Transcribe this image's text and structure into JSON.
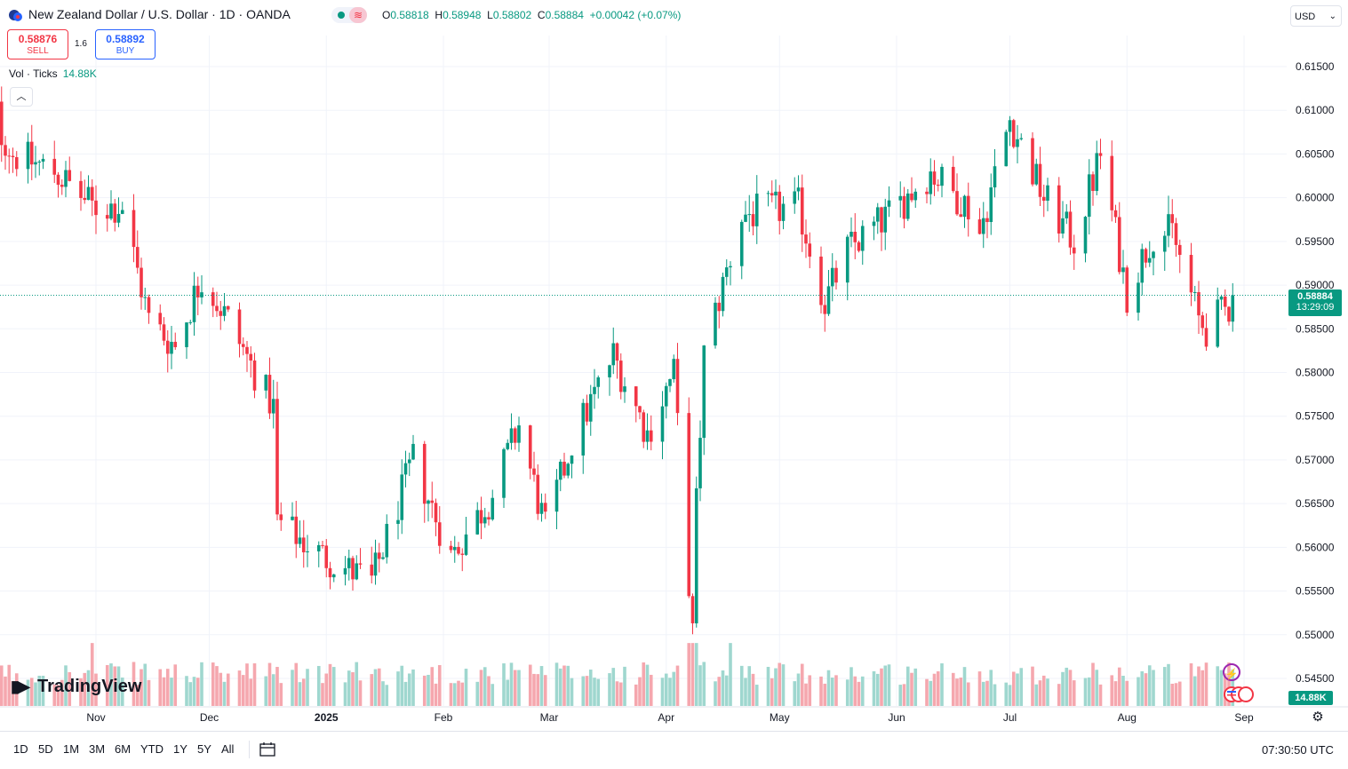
{
  "header": {
    "title": "New Zealand Dollar / U.S. Dollar · 1D · OANDA",
    "ohlc": {
      "open_label": "O",
      "open": "0.58818",
      "high_label": "H",
      "high": "0.58948",
      "low_label": "L",
      "low": "0.58802",
      "close_label": "C",
      "close": "0.58884",
      "change": "+0.00042 (+0.07%)"
    },
    "currency": "USD"
  },
  "trade": {
    "sell_price": "0.58876",
    "sell_label": "SELL",
    "spread": "1.6",
    "buy_price": "0.58892",
    "buy_label": "BUY"
  },
  "volume_legend": {
    "label": "Vol · Ticks",
    "value": "14.88K"
  },
  "price_tag": {
    "price": "0.58884",
    "countdown": "13:29:09"
  },
  "volume_tag": "14.88K",
  "logo": "TradingView",
  "bottom": {
    "ranges": [
      "1D",
      "5D",
      "1M",
      "3M",
      "6M",
      "YTD",
      "1Y",
      "5Y",
      "All"
    ],
    "clock": "07:30:50 UTC"
  },
  "colors": {
    "up": "#089981",
    "down": "#f23645",
    "up_vol": "#9fd7cf",
    "down_vol": "#f5a7ae",
    "grid": "#f0f3fa"
  },
  "chart_data": {
    "type": "candlestick",
    "symbol": "NZDUSD",
    "interval": "1D",
    "y_axis": {
      "ticks": [
        "0.61500",
        "0.61000",
        "0.60500",
        "0.60000",
        "0.59500",
        "0.59000",
        "0.58500",
        "0.58000",
        "0.57500",
        "0.57000",
        "0.56500",
        "0.56000",
        "0.55500",
        "0.55000",
        "0.54500"
      ],
      "range": [
        0.5445,
        0.616
      ]
    },
    "x_axis": {
      "ticks": [
        "Nov",
        "Dec",
        "2025",
        "Feb",
        "Mar",
        "Apr",
        "May",
        "Jun",
        "Jul",
        "Aug",
        "Sep"
      ],
      "bold_ticks": [
        "2025"
      ]
    },
    "last_price": 0.58884,
    "anchors": [
      {
        "date": "2024-10-01",
        "price": 0.612
      },
      {
        "date": "2024-10-10",
        "price": 0.605
      },
      {
        "date": "2024-10-21",
        "price": 0.603
      },
      {
        "date": "2024-10-31",
        "price": 0.599
      },
      {
        "date": "2024-11-08",
        "price": 0.599
      },
      {
        "date": "2024-11-15",
        "price": 0.586
      },
      {
        "date": "2024-11-22",
        "price": 0.583
      },
      {
        "date": "2024-11-29",
        "price": 0.591
      },
      {
        "date": "2024-12-06",
        "price": 0.586
      },
      {
        "date": "2024-12-13",
        "price": 0.58
      },
      {
        "date": "2024-12-18",
        "price": 0.576
      },
      {
        "date": "2024-12-19",
        "price": 0.563
      },
      {
        "date": "2024-12-31",
        "price": 0.559
      },
      {
        "date": "2025-01-13",
        "price": 0.556
      },
      {
        "date": "2025-01-24",
        "price": 0.57
      },
      {
        "date": "2025-02-03",
        "price": 0.559
      },
      {
        "date": "2025-02-14",
        "price": 0.566
      },
      {
        "date": "2025-02-21",
        "price": 0.574
      },
      {
        "date": "2025-02-28",
        "price": 0.562
      },
      {
        "date": "2025-03-07",
        "price": 0.572
      },
      {
        "date": "2025-03-18",
        "price": 0.582
      },
      {
        "date": "2025-03-27",
        "price": 0.573
      },
      {
        "date": "2025-04-03",
        "price": 0.58
      },
      {
        "date": "2025-04-08",
        "price": 0.55
      },
      {
        "date": "2025-04-09",
        "price": 0.565
      },
      {
        "date": "2025-04-11",
        "price": 0.582
      },
      {
        "date": "2025-04-21",
        "price": 0.598
      },
      {
        "date": "2025-05-06",
        "price": 0.599
      },
      {
        "date": "2025-05-13",
        "price": 0.588
      },
      {
        "date": "2025-05-19",
        "price": 0.594
      },
      {
        "date": "2025-05-30",
        "price": 0.598
      },
      {
        "date": "2025-06-10",
        "price": 0.603
      },
      {
        "date": "2025-06-20",
        "price": 0.599
      },
      {
        "date": "2025-06-23",
        "price": 0.596
      },
      {
        "date": "2025-07-01",
        "price": 0.609
      },
      {
        "date": "2025-07-10",
        "price": 0.6
      },
      {
        "date": "2025-07-18",
        "price": 0.595
      },
      {
        "date": "2025-07-25",
        "price": 0.605
      },
      {
        "date": "2025-08-01",
        "price": 0.589
      },
      {
        "date": "2025-08-08",
        "price": 0.596
      },
      {
        "date": "2025-08-13",
        "price": 0.596
      },
      {
        "date": "2025-08-20",
        "price": 0.586
      },
      {
        "date": "2025-08-22",
        "price": 0.585
      },
      {
        "date": "2025-08-29",
        "price": 0.588
      }
    ],
    "volume": {
      "unit": "ticks",
      "last": "14.88K",
      "typical_range": [
        0.5,
        1.6
      ],
      "spike_dates": [
        "2024-10-31",
        "2025-04-07",
        "2025-04-08",
        "2025-04-09",
        "2025-04-18"
      ]
    }
  }
}
